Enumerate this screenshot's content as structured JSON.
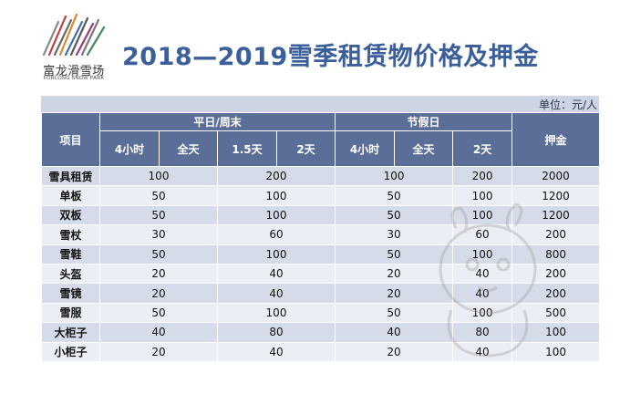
{
  "logo": {
    "icon": "forlong-stripes-logo",
    "name_cn": "富龙滑雪场",
    "name_en": "FORLONG SNOW PARK"
  },
  "title": "2018—2019雪季租赁物价格及押金",
  "unit": "单位：元/人",
  "table": {
    "item_header": "项目",
    "group_weekday": "平日/周末",
    "group_holiday": "节假日",
    "deposit_header": "押金",
    "sub_headers": [
      "4小时",
      "全天",
      "1.5天",
      "2天",
      "4小时",
      "全天",
      "2天"
    ],
    "rows": [
      {
        "item": "雪具租赁",
        "wd_4h_fullday": "100",
        "wd_15_2": "200",
        "hol_4h_fullday": "100",
        "hol_2d": "200",
        "deposit": "2000"
      },
      {
        "item": "单板",
        "wd_4h": "50",
        "wd_full": "",
        "wd_15_2": "100",
        "hol_4h_fullday": "50",
        "hol_2d": "100",
        "deposit": "1200"
      },
      {
        "item": "双板",
        "wd_4h": "50",
        "wd_full": "",
        "wd_15_2": "100",
        "hol_4h_fullday": "50",
        "hol_2d": "100",
        "deposit": "1200"
      },
      {
        "item": "雪杖",
        "wd_4h": "30",
        "wd_full": "",
        "wd_15_2": "60",
        "hol_4h_fullday": "30",
        "hol_2d": "60",
        "deposit": "200"
      },
      {
        "item": "雪鞋",
        "wd_4h": "50",
        "wd_full": "",
        "wd_15_2": "100",
        "hol_4h_fullday": "50",
        "hol_2d": "100",
        "deposit": "800"
      },
      {
        "item": "头盔",
        "wd_4h": "20",
        "wd_full": "",
        "wd_15_2": "40",
        "hol_4h_fullday": "20",
        "hol_2d": "40",
        "deposit": "200"
      },
      {
        "item": "雪镜",
        "wd_4h": "20",
        "wd_full": "",
        "wd_15_2": "40",
        "hol_4h_fullday": "20",
        "hol_2d": "40",
        "deposit": "200"
      },
      {
        "item": "雪服",
        "wd_4h": "50",
        "wd_full": "",
        "wd_15_2": "100",
        "hol_4h_fullday": "50",
        "hol_2d": "100",
        "deposit": "500"
      },
      {
        "item": "大柜子",
        "wd_4h": "40",
        "wd_full": "",
        "wd_15_2": "80",
        "hol_4h_fullday": "40",
        "hol_2d": "80",
        "deposit": "100"
      },
      {
        "item": "小柜子",
        "wd_4h": "20",
        "wd_full": "",
        "wd_15_2": "40",
        "hol_4h_fullday": "20",
        "hol_2d": "40",
        "deposit": "100"
      }
    ]
  },
  "colors": {
    "title": "#3b5f9a",
    "header_bg": "#5b6e97",
    "unit_bar": "#cdd4e3",
    "row_odd": "#d5dbe8",
    "row_even": "#ebeef5"
  }
}
